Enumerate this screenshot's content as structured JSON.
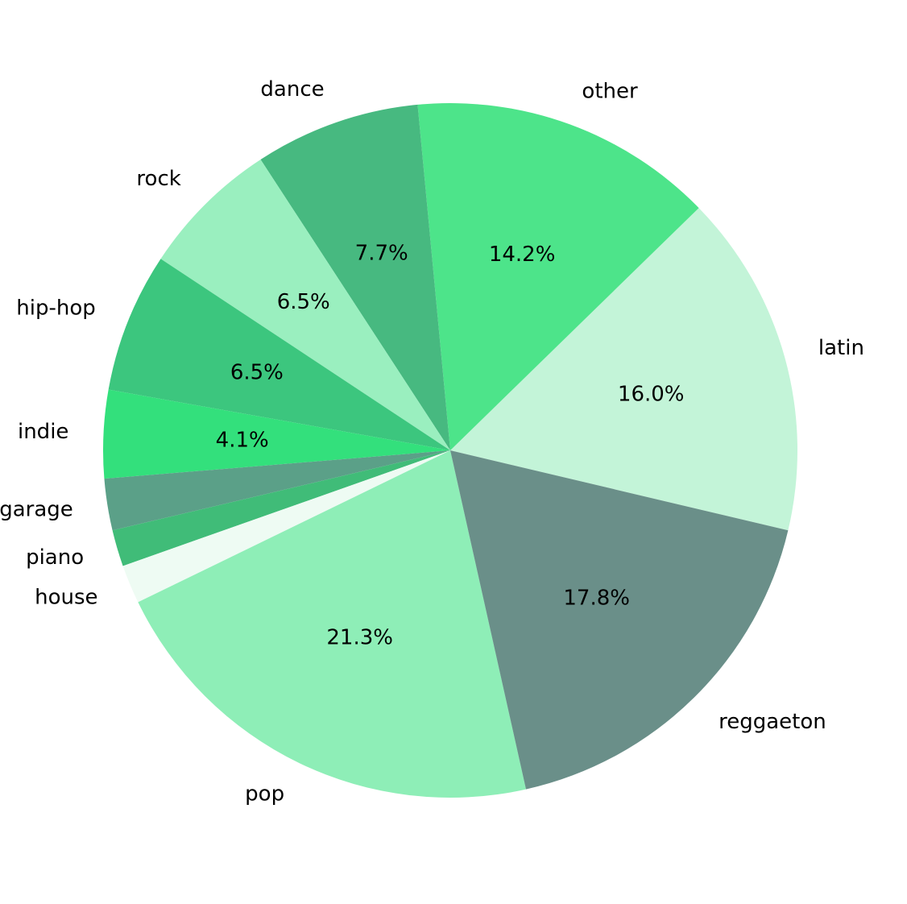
{
  "chart_data": {
    "type": "pie",
    "title": "",
    "slices": [
      {
        "label": "latin",
        "value": 16.0,
        "pct_label": "16.0%",
        "color": "#c3f4d8"
      },
      {
        "label": "other",
        "value": 14.2,
        "pct_label": "14.2%",
        "color": "#4de48a"
      },
      {
        "label": "dance",
        "value": 7.7,
        "pct_label": "7.7%",
        "color": "#47b980"
      },
      {
        "label": "rock",
        "value": 6.5,
        "pct_label": "6.5%",
        "color": "#9aefbf"
      },
      {
        "label": "hip-hop",
        "value": 6.5,
        "pct_label": "6.5%",
        "color": "#3cc67e"
      },
      {
        "label": "indie",
        "value": 4.1,
        "pct_label": "4.1%",
        "color": "#33e07c"
      },
      {
        "label": "garage",
        "value": 2.4,
        "pct_label": "",
        "color": "#5ba088"
      },
      {
        "label": "piano",
        "value": 1.7,
        "pct_label": "",
        "color": "#40bc78"
      },
      {
        "label": "house",
        "value": 1.8,
        "pct_label": "",
        "color": "#eefbf3"
      },
      {
        "label": "pop",
        "value": 21.3,
        "pct_label": "21.3%",
        "color": "#8eeeb7"
      },
      {
        "label": "reggaeton",
        "value": 17.8,
        "pct_label": "17.8%",
        "color": "#6a8f89"
      }
    ],
    "direction": "counterclockwise",
    "legend": "none"
  }
}
